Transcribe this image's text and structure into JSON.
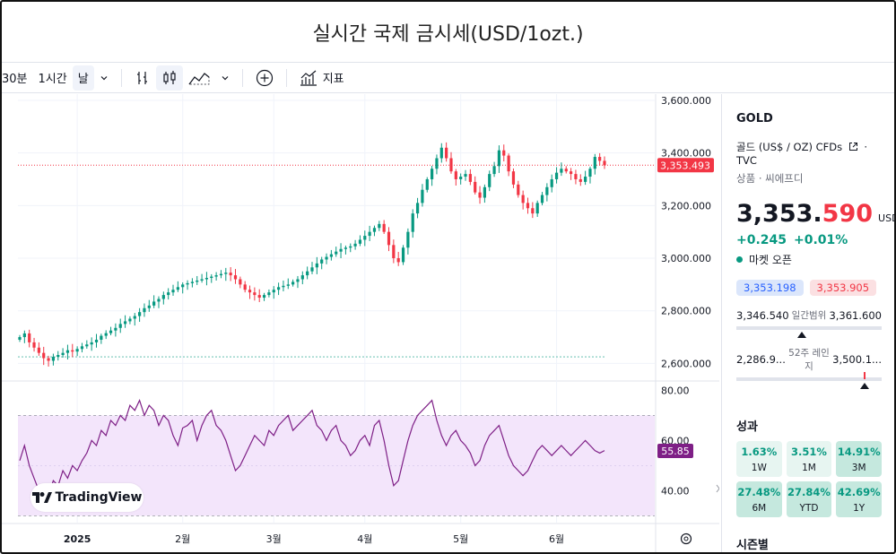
{
  "title": "실시간 국제 금시세(USD/1ozt.)",
  "toolbar": {
    "interval_30m": "30분",
    "interval_1h": "1시간",
    "interval_day": "날",
    "indicators": "지표"
  },
  "chart_data": {
    "type": "candlestick",
    "price_axis": [
      "3,600.000",
      "3,400.000",
      "3,200.000",
      "3,000.000",
      "2,800.000",
      "2,600.000"
    ],
    "price_range": [
      2540,
      3610
    ],
    "current_price_label": "3,353.493",
    "current_price": 3353.493,
    "time_axis": [
      "2025",
      "2월",
      "3월",
      "4월",
      "5월",
      "6월"
    ],
    "rsi_axis": [
      "80.00",
      "60.00",
      "40.00"
    ],
    "rsi_range": [
      28,
      83
    ],
    "rsi_current_label": "55.85",
    "rsi_current": 55.85,
    "closes": [
      2700,
      2714,
      2680,
      2660,
      2640,
      2620,
      2610,
      2625,
      2632,
      2640,
      2650,
      2645,
      2655,
      2665,
      2672,
      2680,
      2690,
      2705,
      2715,
      2725,
      2735,
      2750,
      2760,
      2770,
      2780,
      2795,
      2810,
      2820,
      2835,
      2845,
      2860,
      2870,
      2880,
      2890,
      2900,
      2905,
      2910,
      2915,
      2920,
      2925,
      2930,
      2935,
      2940,
      2945,
      2935,
      2920,
      2900,
      2880,
      2870,
      2860,
      2850,
      2860,
      2870,
      2880,
      2890,
      2895,
      2900,
      2910,
      2920,
      2935,
      2950,
      2965,
      2980,
      2995,
      3005,
      3015,
      3025,
      3035,
      3040,
      3045,
      3055,
      3070,
      3085,
      3100,
      3115,
      3130,
      3100,
      3050,
      3000,
      2985,
      3040,
      3100,
      3170,
      3210,
      3260,
      3300,
      3340,
      3380,
      3420,
      3380,
      3330,
      3300,
      3310,
      3320,
      3290,
      3250,
      3230,
      3270,
      3320,
      3350,
      3410,
      3390,
      3330,
      3280,
      3240,
      3210,
      3190,
      3170,
      3210,
      3240,
      3270,
      3300,
      3325,
      3340,
      3330,
      3320,
      3300,
      3290,
      3310,
      3340,
      3385,
      3370,
      3353
    ],
    "rsi": [
      52,
      58,
      50,
      45,
      40,
      36,
      38,
      44,
      42,
      48,
      45,
      50,
      48,
      52,
      55,
      60,
      58,
      64,
      62,
      68,
      66,
      70,
      68,
      74,
      72,
      76,
      70,
      74,
      72,
      66,
      70,
      68,
      62,
      58,
      65,
      66,
      68,
      60,
      66,
      70,
      72,
      66,
      64,
      60,
      54,
      48,
      50,
      54,
      58,
      62,
      60,
      58,
      64,
      62,
      66,
      68,
      70,
      64,
      66,
      68,
      70,
      72,
      66,
      64,
      60,
      64,
      66,
      60,
      58,
      54,
      56,
      60,
      62,
      58,
      66,
      68,
      60,
      50,
      42,
      44,
      52,
      60,
      66,
      70,
      72,
      74,
      76,
      68,
      62,
      58,
      62,
      64,
      60,
      58,
      55,
      50,
      52,
      58,
      62,
      64,
      66,
      60,
      54,
      50,
      48,
      46,
      48,
      52,
      56,
      58,
      56,
      54,
      56,
      58,
      56,
      54,
      56,
      58,
      60,
      58,
      56,
      55,
      56
    ]
  },
  "panel": {
    "symbol": "GOLD",
    "desc": "골드 (US$ / OZ) CFDs",
    "source": "TVC",
    "category": "상품 · 씨에프디",
    "price_int": "3,353.",
    "price_dec": "590",
    "currency": "USD",
    "change_abs": "+0.245",
    "change_pct": "+0.01%",
    "market_status": "마켓 오픈",
    "bid": "3,353.198",
    "ask": "3,353.905",
    "day_low": "3,346.540",
    "day_label": "일간범위",
    "day_high": "3,361.600",
    "day_position": 0.45,
    "wk52_low": "2,286.9...",
    "wk52_label": "52주 레인지",
    "wk52_high": "3,500.1...",
    "wk52_position": 0.88,
    "perf_title": "성과",
    "perf": [
      {
        "value": "1.63%",
        "period": "1W"
      },
      {
        "value": "3.51%",
        "period": "1M"
      },
      {
        "value": "14.91%",
        "period": "3M"
      },
      {
        "value": "27.48%",
        "period": "6M"
      },
      {
        "value": "27.84%",
        "period": "YTD"
      },
      {
        "value": "42.69%",
        "period": "1Y"
      }
    ],
    "season_title": "시즌별"
  },
  "logo_text": "TradingView",
  "colors": {
    "up": "#089981",
    "down": "#f23645",
    "rsi_line": "#7e1f86",
    "rsi_band": "#f3e5fb"
  }
}
